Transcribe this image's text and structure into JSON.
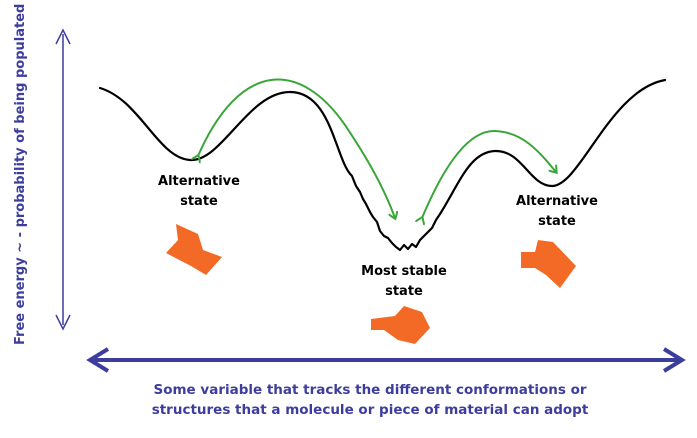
{
  "axes": {
    "y_label": "Free energy ~ - probability of being populated",
    "x_label_line1": "Some variable that tracks the different conformations or",
    "x_label_line2": "structures that a molecule or piece of material can adopt"
  },
  "states": {
    "left": {
      "line1": "Alternative",
      "line2": "state"
    },
    "center": {
      "line1": "Most stable",
      "line2": "state"
    },
    "right": {
      "line1": "Alternative",
      "line2": "state"
    }
  },
  "colors": {
    "axis": "#3d3d9e",
    "curve": "#000000",
    "arrows": "#3aa63a",
    "shapes": "#f26a25"
  }
}
